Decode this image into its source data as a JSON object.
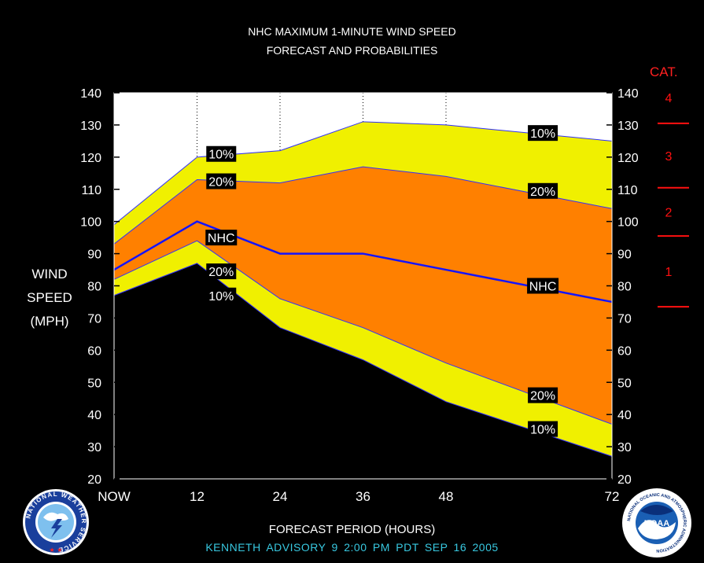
{
  "title_line1": "NHC MAXIMUM 1-MINUTE WIND SPEED",
  "title_line2": "FORECAST AND PROBABILITIES",
  "y_axis_label": [
    "WIND",
    "SPEED",
    "(MPH)"
  ],
  "x_axis_label": "FORECAST PERIOD (HOURS)",
  "advisory_text": "KENNETH   ADVISORY  9 2:00  PM  PDT  SEP  16  2005",
  "category_title": "CAT.",
  "logos": {
    "left": "NATIONAL WEATHER SERVICE",
    "right_center": "NOAA",
    "right_ring": "NATIONAL OCEANIC AND ATMOSPHERIC ADMINISTRATION U.S. DEPARTMENT OF COMMERCE"
  },
  "colors": {
    "outer_band": "#f0f000",
    "inner_band": "#ff8000",
    "nhc_line": "#1414ff",
    "category": "#ff1010",
    "advisory": "#38c8e0"
  },
  "chart_data": {
    "type": "area",
    "x": [
      0,
      12,
      24,
      36,
      48,
      72
    ],
    "x_tick_labels": [
      "NOW",
      "12",
      "24",
      "36",
      "48",
      "72"
    ],
    "x_range": [
      0,
      72
    ],
    "ylim": [
      20,
      140
    ],
    "y_ticks": [
      20,
      30,
      40,
      50,
      60,
      70,
      80,
      90,
      100,
      110,
      120,
      130,
      140
    ],
    "grid": "vertical dotted lines at 12, 24, 36, 48",
    "series": [
      {
        "name": "10%",
        "band": "upper",
        "values": [
          99,
          120,
          122,
          131,
          130,
          125
        ]
      },
      {
        "name": "20%",
        "band": "upper",
        "values": [
          93,
          113,
          112,
          117,
          114,
          104
        ]
      },
      {
        "name": "NHC",
        "values": [
          85,
          100,
          90,
          90,
          85,
          75
        ]
      },
      {
        "name": "20%",
        "band": "lower",
        "values": [
          82,
          94,
          76,
          67,
          56,
          37
        ]
      },
      {
        "name": "10%",
        "band": "lower",
        "values": [
          77,
          87,
          67,
          57,
          44,
          27
        ]
      }
    ],
    "annotations": [
      {
        "text": "10%",
        "x": 15.5,
        "y": 121
      },
      {
        "text": "20%",
        "x": 15.5,
        "y": 112.5
      },
      {
        "text": "NHC",
        "x": 15.5,
        "y": 95
      },
      {
        "text": "20%",
        "x": 15.5,
        "y": 84.5
      },
      {
        "text": "10%",
        "x": 15.5,
        "y": 77
      },
      {
        "text": "10%",
        "x": 62,
        "y": 127.5
      },
      {
        "text": "20%",
        "x": 62,
        "y": 109.5
      },
      {
        "text": "NHC",
        "x": 62,
        "y": 80
      },
      {
        "text": "20%",
        "x": 62,
        "y": 46
      },
      {
        "text": "10%",
        "x": 62,
        "y": 35.5
      }
    ],
    "categories": [
      {
        "label": "4",
        "min": 131
      },
      {
        "label": "3",
        "min": 111,
        "max": 130
      },
      {
        "label": "2",
        "min": 96,
        "max": 110
      },
      {
        "label": "1",
        "min": 74,
        "max": 95
      }
    ],
    "category_boundaries": [
      130.5,
      110.5,
      95.5,
      73.5
    ]
  }
}
